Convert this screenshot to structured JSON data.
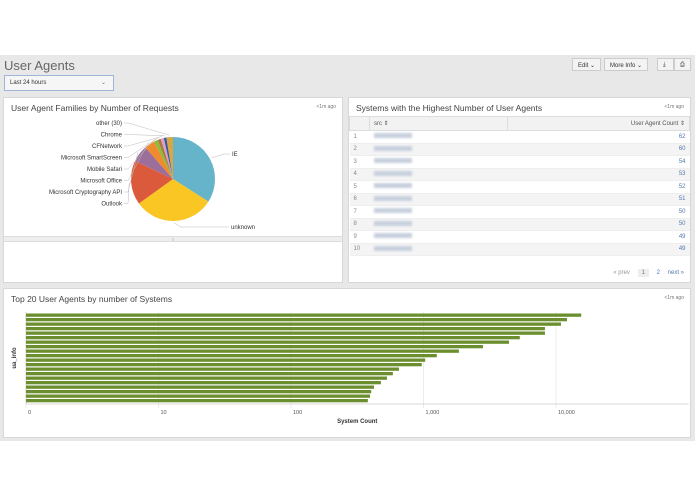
{
  "header": {
    "title": "User Agents",
    "time_range": "Last 24 hours",
    "edit": "Edit",
    "more_info": "More Info",
    "download_icon": "download-icon",
    "print_icon": "print-icon"
  },
  "pie_panel": {
    "title": "User Agent Families by Number of Requests",
    "updated": "<1m ago"
  },
  "table_panel": {
    "title": "Systems with the Highest Number of User Agents",
    "updated": "<1m ago",
    "columns": [
      "src",
      "User Agent Count"
    ],
    "rows": [
      {
        "n": "1",
        "count": "62"
      },
      {
        "n": "2",
        "count": "60"
      },
      {
        "n": "3",
        "count": "54"
      },
      {
        "n": "4",
        "count": "53"
      },
      {
        "n": "5",
        "count": "52"
      },
      {
        "n": "6",
        "count": "51"
      },
      {
        "n": "7",
        "count": "50"
      },
      {
        "n": "8",
        "count": "50"
      },
      {
        "n": "9",
        "count": "49"
      },
      {
        "n": "10",
        "count": "49"
      }
    ],
    "pager": {
      "prev": "« prev",
      "pages": [
        "1",
        "2"
      ],
      "current": "1",
      "next": "next »"
    }
  },
  "bar_panel": {
    "title": "Top 20 User Agents by number of Systems",
    "updated": "<1m ago"
  },
  "chart_data": [
    {
      "type": "pie",
      "slices": [
        {
          "label": "IE",
          "value": 34,
          "color": "#65b4c9"
        },
        {
          "label": "unknown",
          "value": 31,
          "color": "#f9c623"
        },
        {
          "label": "Outlook",
          "value": 17,
          "color": "#dc5a3c"
        },
        {
          "label": "Microsoft Cryptography API",
          "value": 6.5,
          "color": "#9c6f9a"
        },
        {
          "label": "Microsoft Office",
          "value": 4,
          "color": "#f08a2e"
        },
        {
          "label": "Mobile Safari",
          "value": 1.5,
          "color": "#8fba3a"
        },
        {
          "label": "Microsoft SmartScreen",
          "value": 1.2,
          "color": "#a8793d"
        },
        {
          "label": "CFNetwork",
          "value": 1.2,
          "color": "#e79bc3"
        },
        {
          "label": "Chrome",
          "value": 1,
          "color": "#2f5ea8"
        },
        {
          "label": "other (30)",
          "value": 2.5,
          "color": "#d9a640"
        }
      ]
    },
    {
      "type": "bar",
      "orientation": "horizontal",
      "xlabel": "System Count",
      "ylabel": "ua_info",
      "xscale": "log",
      "xticks": [
        "0",
        "10",
        "100",
        "1,000",
        "10,000"
      ],
      "color": "#6b8e2e",
      "grid": true,
      "values": [
        15500,
        12100,
        10900,
        8250,
        8250,
        5330,
        4420,
        2810,
        1850,
        1260,
        1030,
        970,
        653,
        587,
        530,
        477,
        423,
        403,
        395,
        380
      ]
    }
  ]
}
